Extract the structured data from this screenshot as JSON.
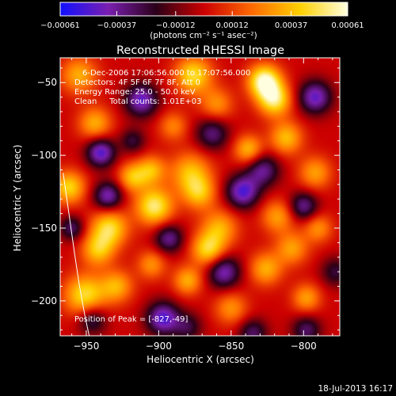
{
  "chart_data": {
    "type": "heatmap",
    "title": "Reconstructed RHESSI Image",
    "xlabel": "Heliocentric X (arcsec)",
    "ylabel": "Heliocentric Y (arcsec)",
    "xlim": [
      -968,
      -775
    ],
    "ylim": [
      -224,
      -33
    ],
    "x_ticks": [
      -950,
      -900,
      -850,
      -800
    ],
    "x_tick_labels": [
      "−950",
      "−900",
      "−850",
      "−800"
    ],
    "y_ticks": [
      -50,
      -100,
      -150,
      -200
    ],
    "y_tick_labels": [
      "−50",
      "−100",
      "−150",
      "−200"
    ],
    "colorbar": {
      "range": [
        -0.00061,
        0.00061
      ],
      "ticks": [
        -0.00061,
        -0.00037,
        -0.00012,
        0.00012,
        0.00037,
        0.00061
      ],
      "tick_labels": [
        "−0.00061",
        "−0.00037",
        "−0.00012",
        "0.00012",
        "0.00037",
        "0.00061"
      ],
      "unit_label": "(photons cm⁻² s⁻¹ asec⁻²)",
      "colormap": [
        "#1010ff",
        "#7a1fb0",
        "#2a0018",
        "#cc0000",
        "#ff6a00",
        "#ffd000",
        "#ffffe0"
      ]
    },
    "annotations": [
      "6-Dec-2006 17:06:56.000 to 17:07:56.000",
      "Detectors: 4F 5F 6F 7F 8F, Att 0",
      "Energy Range: 25.0 - 50.0 keV",
      "Clean     Total counts: 1.01E+03"
    ],
    "peak_text": "Position of Peak = [-827,-49]",
    "peak": [
      -827,
      -49
    ],
    "blobs": [
      {
        "x": -827,
        "y": -49,
        "s": 8,
        "a": 1.0
      },
      {
        "x": -820,
        "y": -62,
        "s": 8,
        "a": 0.8
      },
      {
        "x": -876,
        "y": -45,
        "s": 9,
        "a": 0.75
      },
      {
        "x": -944,
        "y": -78,
        "s": 8,
        "a": 0.55
      },
      {
        "x": -934,
        "y": -150,
        "s": 9,
        "a": 0.75
      },
      {
        "x": -942,
        "y": -165,
        "s": 8,
        "a": 0.6
      },
      {
        "x": -903,
        "y": -135,
        "s": 9,
        "a": 0.85
      },
      {
        "x": -918,
        "y": -115,
        "s": 7,
        "a": 0.6
      },
      {
        "x": -905,
        "y": -110,
        "s": 7,
        "a": 0.55
      },
      {
        "x": -962,
        "y": -122,
        "s": 8,
        "a": 0.7
      },
      {
        "x": -951,
        "y": -196,
        "s": 10,
        "a": 0.75
      },
      {
        "x": -929,
        "y": -190,
        "s": 8,
        "a": 0.55
      },
      {
        "x": -878,
        "y": -112,
        "s": 10,
        "a": 0.6
      },
      {
        "x": -872,
        "y": -126,
        "s": 8,
        "a": 0.55
      },
      {
        "x": -838,
        "y": -96,
        "s": 7,
        "a": 0.6
      },
      {
        "x": -812,
        "y": -88,
        "s": 8,
        "a": 0.6
      },
      {
        "x": -818,
        "y": -142,
        "s": 8,
        "a": 0.5
      },
      {
        "x": -792,
        "y": -112,
        "s": 8,
        "a": 0.5
      },
      {
        "x": -858,
        "y": -150,
        "s": 9,
        "a": 0.55
      },
      {
        "x": -866,
        "y": -165,
        "s": 8,
        "a": 0.7
      },
      {
        "x": -826,
        "y": -178,
        "s": 8,
        "a": 0.55
      },
      {
        "x": -808,
        "y": -164,
        "s": 8,
        "a": 0.5
      },
      {
        "x": -798,
        "y": -198,
        "s": 7,
        "a": 0.5
      },
      {
        "x": -880,
        "y": -186,
        "s": 7,
        "a": 0.55
      },
      {
        "x": -905,
        "y": -175,
        "s": 7,
        "a": 0.45
      },
      {
        "x": -850,
        "y": -205,
        "s": 8,
        "a": 0.45
      },
      {
        "x": -790,
        "y": -150,
        "s": 7,
        "a": 0.45
      },
      {
        "x": -860,
        "y": -65,
        "s": 8,
        "a": 0.45
      },
      {
        "x": -890,
        "y": -80,
        "s": 7,
        "a": 0.4
      },
      {
        "x": -955,
        "y": -45,
        "s": 9,
        "a": 0.55
      },
      {
        "x": -940,
        "y": -98,
        "s": 7,
        "a": -0.8
      },
      {
        "x": -912,
        "y": -62,
        "s": 8,
        "a": -0.75
      },
      {
        "x": -935,
        "y": -128,
        "s": 7,
        "a": -0.7
      },
      {
        "x": -946,
        "y": -213,
        "s": 7,
        "a": -0.5
      },
      {
        "x": -897,
        "y": -212,
        "s": 8,
        "a": -0.8
      },
      {
        "x": -855,
        "y": -180,
        "s": 8,
        "a": -0.7
      },
      {
        "x": -842,
        "y": -125,
        "s": 8,
        "a": -0.8
      },
      {
        "x": -828,
        "y": -110,
        "s": 8,
        "a": -0.6
      },
      {
        "x": -792,
        "y": -60,
        "s": 8,
        "a": -0.75
      },
      {
        "x": -800,
        "y": -135,
        "s": 7,
        "a": -0.6
      },
      {
        "x": -798,
        "y": -220,
        "s": 7,
        "a": -0.5
      },
      {
        "x": -863,
        "y": -85,
        "s": 8,
        "a": -0.55
      },
      {
        "x": -893,
        "y": -157,
        "s": 7,
        "a": -0.6
      },
      {
        "x": -960,
        "y": -150,
        "s": 6,
        "a": -0.5
      },
      {
        "x": -880,
        "y": -218,
        "s": 7,
        "a": -0.4
      },
      {
        "x": -918,
        "y": -90,
        "s": 6,
        "a": -0.4
      },
      {
        "x": -835,
        "y": -222,
        "s": 7,
        "a": -0.5
      },
      {
        "x": -778,
        "y": -180,
        "s": 7,
        "a": -0.4
      }
    ],
    "limb_arc": [
      [
        -966,
        -112
      ],
      [
        -962,
        -140
      ],
      [
        -958,
        -168
      ],
      [
        -955,
        -188
      ],
      [
        -951,
        -210
      ],
      [
        -948,
        -224
      ]
    ],
    "grid": false
  },
  "footer": {
    "timestamp": "18-Jul-2013 16:17"
  }
}
